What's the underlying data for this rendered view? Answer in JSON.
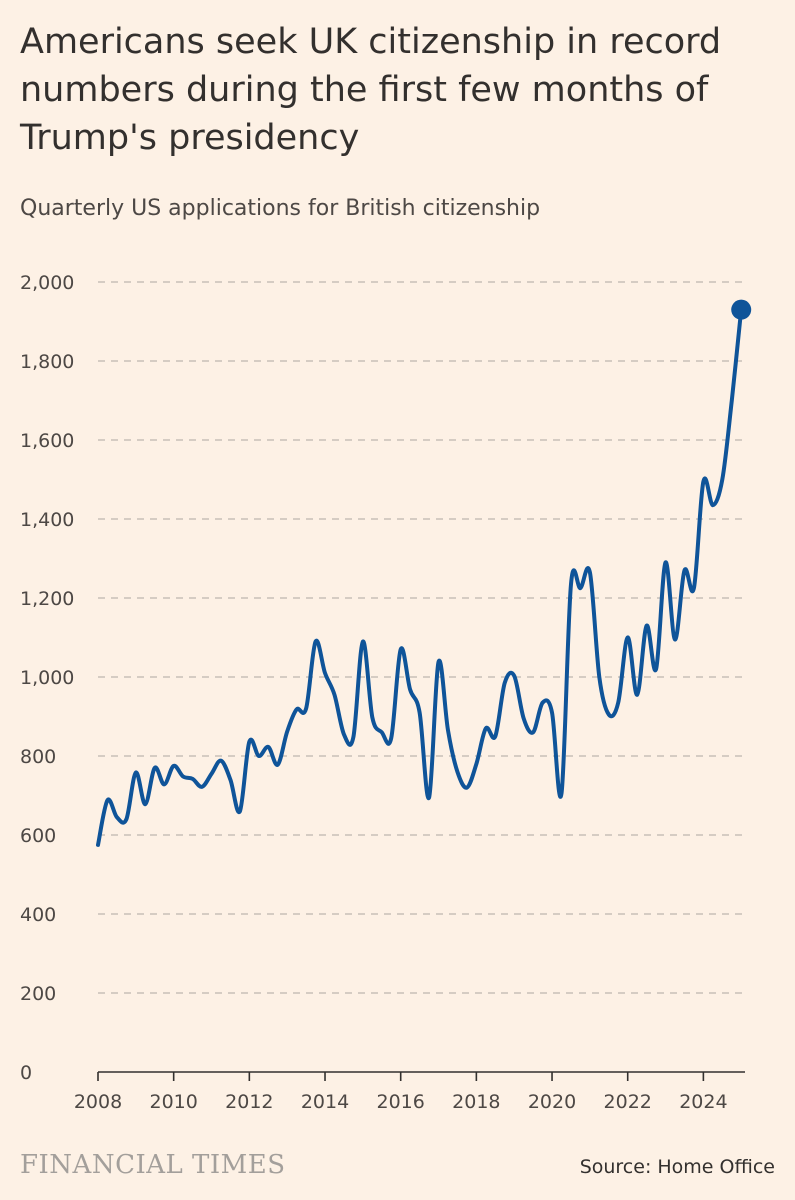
{
  "title": "Americans seek UK citizenship in record numbers during the first few months of Trump's presidency",
  "subtitle": "Quarterly US applications for British citizenship",
  "brand": "FINANCIAL TIMES",
  "source": "Source: Home Office",
  "colors": {
    "background": "#fdf1e5",
    "line": "#0f5499",
    "grid": "#c8c0b8",
    "text": "#33302e"
  },
  "chart_data": {
    "type": "line",
    "title": "Americans seek UK citizenship in record numbers during the first few months of Trump's presidency",
    "subtitle": "Quarterly US applications for British citizenship",
    "xlabel": "",
    "ylabel": "",
    "xlim": [
      2008,
      2025.1
    ],
    "ylim": [
      0,
      2000
    ],
    "grid": true,
    "y_ticks": [
      0,
      200,
      400,
      600,
      800,
      1000,
      1200,
      1400,
      1600,
      1800,
      2000
    ],
    "y_tick_labels": [
      "0",
      "200",
      "400",
      "600",
      "800",
      "1,000",
      "1,200",
      "1,400",
      "1,600",
      "1,800",
      "2,000"
    ],
    "x_ticks": [
      2008,
      2010,
      2012,
      2014,
      2016,
      2018,
      2020,
      2022,
      2024
    ],
    "x_tick_labels": [
      "2008",
      "2010",
      "2012",
      "2014",
      "2016",
      "2018",
      "2020",
      "2022",
      "2024"
    ],
    "series": [
      {
        "name": "US applications",
        "x": [
          2008.0,
          2008.25,
          2008.5,
          2008.75,
          2009.0,
          2009.25,
          2009.5,
          2009.75,
          2010.0,
          2010.25,
          2010.5,
          2010.75,
          2011.0,
          2011.25,
          2011.5,
          2011.75,
          2012.0,
          2012.25,
          2012.5,
          2012.75,
          2013.0,
          2013.25,
          2013.5,
          2013.75,
          2014.0,
          2014.25,
          2014.5,
          2014.75,
          2015.0,
          2015.25,
          2015.5,
          2015.75,
          2016.0,
          2016.25,
          2016.5,
          2016.75,
          2017.0,
          2017.25,
          2017.5,
          2017.75,
          2018.0,
          2018.25,
          2018.5,
          2018.75,
          2019.0,
          2019.25,
          2019.5,
          2019.75,
          2020.0,
          2020.25,
          2020.5,
          2020.75,
          2021.0,
          2021.25,
          2021.5,
          2021.75,
          2022.0,
          2022.25,
          2022.5,
          2022.75,
          2023.0,
          2023.25,
          2023.5,
          2023.75,
          2024.0,
          2024.25,
          2024.5,
          2024.75,
          2025.0
        ],
        "values": [
          575,
          688,
          645,
          640,
          758,
          678,
          770,
          728,
          775,
          748,
          742,
          722,
          755,
          788,
          740,
          660,
          836,
          800,
          823,
          778,
          862,
          918,
          920,
          1090,
          1010,
          955,
          855,
          848,
          1090,
          898,
          860,
          845,
          1070,
          968,
          910,
          695,
          1038,
          865,
          760,
          720,
          780,
          870,
          850,
          985,
          1003,
          895,
          860,
          935,
          910,
          705,
          1235,
          1225,
          1265,
          1000,
          905,
          935,
          1100,
          955,
          1130,
          1020,
          1290,
          1095,
          1270,
          1225,
          1495,
          1435,
          1500,
          1700,
          1930
        ]
      }
    ],
    "highlight_point": {
      "x": 2025.0,
      "value": 1930
    }
  }
}
